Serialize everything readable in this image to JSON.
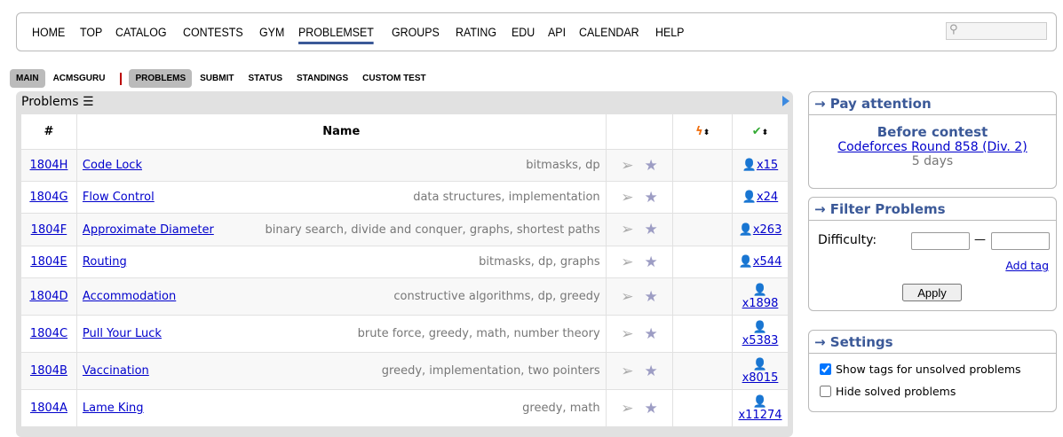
{
  "nav": {
    "items": [
      "HOME",
      "TOP",
      "CATALOG",
      "CONTESTS",
      "GYM",
      "PROBLEMSET",
      "GROUPS",
      "RATING",
      "EDU",
      "API",
      "CALENDAR",
      "HELP"
    ],
    "active": "PROBLEMSET",
    "search_placeholder": ""
  },
  "subnav": {
    "left": [
      "MAIN",
      "ACMSGURU"
    ],
    "right": [
      "PROBLEMS",
      "SUBMIT",
      "STATUS",
      "STANDINGS",
      "CUSTOM TEST"
    ]
  },
  "problems": {
    "title": "Problems",
    "headers": {
      "id": "#",
      "name": "Name"
    },
    "rows": [
      {
        "id": "1804H",
        "name": "Code Lock",
        "tags": "bitmasks, dp",
        "solved": "x15"
      },
      {
        "id": "1804G",
        "name": "Flow Control",
        "tags": "data structures, implementation",
        "solved": "x24"
      },
      {
        "id": "1804F",
        "name": "Approximate Diameter",
        "tags": "binary search, divide and conquer, graphs, shortest paths",
        "solved": "x263"
      },
      {
        "id": "1804E",
        "name": "Routing",
        "tags": "bitmasks, dp, graphs",
        "solved": "x544"
      },
      {
        "id": "1804D",
        "name": "Accommodation",
        "tags": "constructive algorithms, dp, greedy",
        "solved": "x1898"
      },
      {
        "id": "1804C",
        "name": "Pull Your Luck",
        "tags": "brute force, greedy, math, number theory",
        "solved": "x5383"
      },
      {
        "id": "1804B",
        "name": "Vaccination",
        "tags": "greedy, implementation, two pointers",
        "solved": "x8015"
      },
      {
        "id": "1804A",
        "name": "Lame King",
        "tags": "greedy, math",
        "solved": "x11274"
      }
    ]
  },
  "pay_attention": {
    "title": "→ Pay attention",
    "heading": "Before contest",
    "contest": "Codeforces Round 858 (Div. 2)",
    "time": "5 days"
  },
  "filter": {
    "title": "→ Filter Problems",
    "difficulty_label": "Difficulty:",
    "dash": "—",
    "add_tag": "Add tag",
    "apply": "Apply"
  },
  "settings": {
    "title": "→ Settings",
    "show_tags": "Show tags for unsolved problems",
    "show_tags_checked": true,
    "hide_solved": "Hide solved problems",
    "hide_solved_checked": false
  }
}
